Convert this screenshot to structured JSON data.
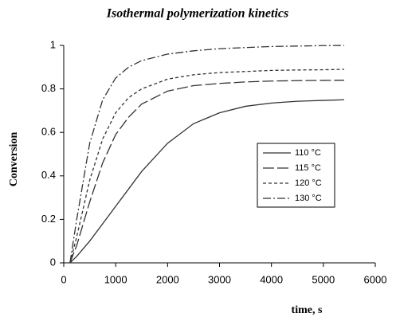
{
  "chart_data": {
    "type": "line",
    "title": "Isothermal polymerization kinetics",
    "x_label": "time, s",
    "y_label": "Conversion",
    "x": [
      120,
      250,
      500,
      750,
      1000,
      1250,
      1500,
      2000,
      2500,
      3000,
      3500,
      4000,
      4500,
      5000,
      5400
    ],
    "series": [
      {
        "name": "110 °C",
        "color": "#333333",
        "dash": "none",
        "values": [
          0,
          0.03,
          0.1,
          0.18,
          0.26,
          0.34,
          0.42,
          0.55,
          0.64,
          0.69,
          0.72,
          0.735,
          0.743,
          0.747,
          0.75
        ]
      },
      {
        "name": "115 °C",
        "color": "#333333",
        "dash": "14 4",
        "values": [
          0,
          0.08,
          0.28,
          0.46,
          0.59,
          0.67,
          0.73,
          0.79,
          0.815,
          0.825,
          0.832,
          0.836,
          0.838,
          0.839,
          0.84
        ]
      },
      {
        "name": "120 °C",
        "color": "#333333",
        "dash": "4 3",
        "values": [
          0,
          0.12,
          0.38,
          0.57,
          0.69,
          0.76,
          0.8,
          0.845,
          0.865,
          0.875,
          0.88,
          0.885,
          0.887,
          0.888,
          0.89
        ]
      },
      {
        "name": "130 °C",
        "color": "#333333",
        "dash": "10 3 2 3",
        "values": [
          0,
          0.2,
          0.55,
          0.75,
          0.85,
          0.9,
          0.93,
          0.96,
          0.975,
          0.985,
          0.99,
          0.995,
          0.997,
          0.999,
          1.0
        ]
      }
    ],
    "xlim": [
      0,
      6000
    ],
    "xticks": [
      0,
      1000,
      2000,
      3000,
      4000,
      5000,
      6000
    ],
    "ylim": [
      0,
      1
    ],
    "yticks": [
      0,
      0.2,
      0.4,
      0.6,
      0.8,
      1
    ],
    "grid": false,
    "legend": "right"
  }
}
